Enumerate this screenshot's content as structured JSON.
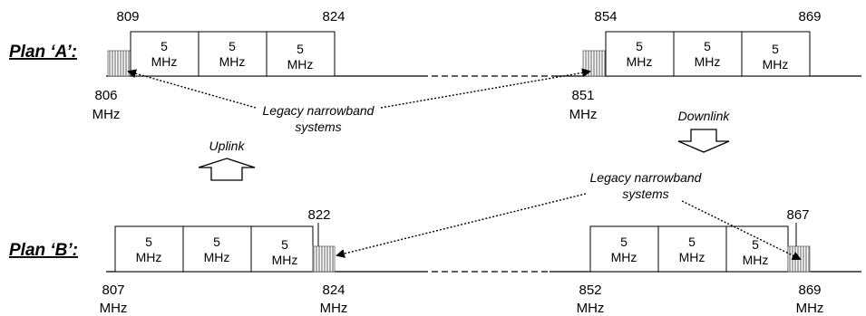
{
  "plan_a": {
    "label": "Plan ‘A’:",
    "uplink_blocks": [
      "5",
      "5",
      "5"
    ],
    "downlink_blocks": [
      "5",
      "5",
      "5"
    ],
    "block_unit": "MHz",
    "top_freqs": [
      "809",
      "824",
      "854",
      "869"
    ],
    "bottom_freqs": [
      {
        "value": "806",
        "unit": "MHz"
      },
      {
        "value": "851",
        "unit": "MHz"
      }
    ],
    "legacy_label": [
      "Legacy narrowband",
      "systems"
    ]
  },
  "labels": {
    "uplink": "Uplink",
    "downlink": "Downlink"
  },
  "plan_b": {
    "label": "Plan ‘B’:",
    "uplink_blocks": [
      "5",
      "5",
      "5"
    ],
    "downlink_blocks": [
      "5",
      "5",
      "5"
    ],
    "block_unit": "MHz",
    "top_freqs": [
      "822",
      "867"
    ],
    "bottom_freqs": [
      {
        "value": "807",
        "unit": "MHz"
      },
      {
        "value": "824",
        "unit": "MHz"
      },
      {
        "value": "852",
        "unit": "MHz"
      },
      {
        "value": "869",
        "unit": "MHz"
      }
    ],
    "legacy_label": [
      "Legacy narrowband",
      "systems"
    ]
  }
}
